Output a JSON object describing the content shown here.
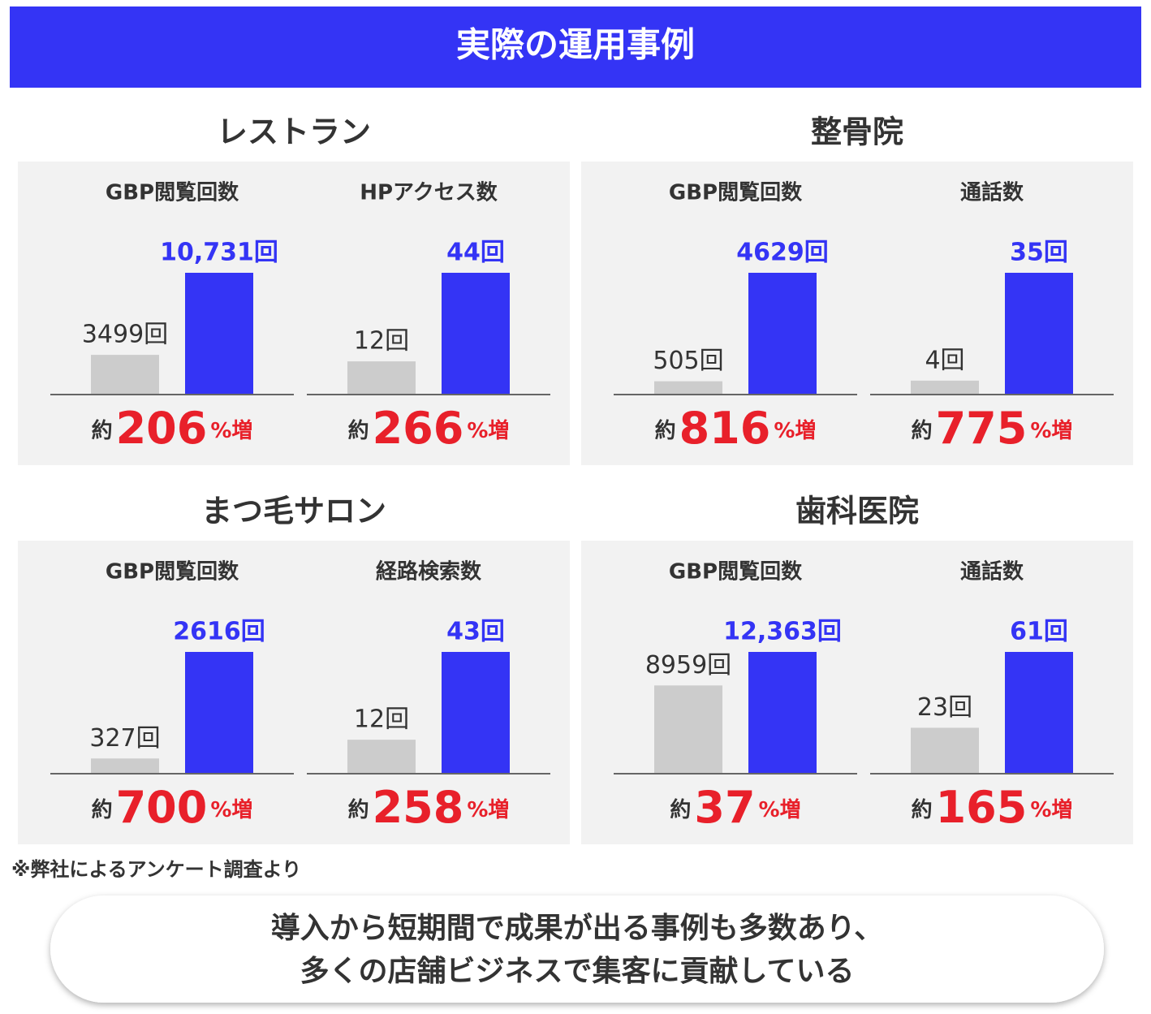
{
  "title": "実際の運用事例",
  "sections": [
    {
      "name": "レストラン"
    },
    {
      "name": "整骨院"
    },
    {
      "name": "まつ毛サロン"
    },
    {
      "name": "歯科医院"
    }
  ],
  "chart_data": [
    {
      "type": "bar",
      "title": "GBP閲覧回数",
      "values": [
        3499,
        10731
      ],
      "value_labels": [
        "3499回",
        "10,731回"
      ],
      "colors": [
        "#cccccc",
        "#3434f5"
      ],
      "prefix": "約",
      "change": 206,
      "suffix": "%増"
    },
    {
      "type": "bar",
      "title": "HPアクセス数",
      "values": [
        12,
        44
      ],
      "value_labels": [
        "12回",
        "44回"
      ],
      "colors": [
        "#cccccc",
        "#3434f5"
      ],
      "prefix": "約",
      "change": 266,
      "suffix": "%増"
    },
    {
      "type": "bar",
      "title": "GBP閲覧回数",
      "values": [
        505,
        4629
      ],
      "value_labels": [
        "505回",
        "4629回"
      ],
      "colors": [
        "#cccccc",
        "#3434f5"
      ],
      "prefix": "約",
      "change": 816,
      "suffix": "%増"
    },
    {
      "type": "bar",
      "title": "通話数",
      "values": [
        4,
        35
      ],
      "value_labels": [
        "4回",
        "35回"
      ],
      "colors": [
        "#cccccc",
        "#3434f5"
      ],
      "prefix": "約",
      "change": 775,
      "suffix": "%増"
    },
    {
      "type": "bar",
      "title": "GBP閲覧回数",
      "values": [
        327,
        2616
      ],
      "value_labels": [
        "327回",
        "2616回"
      ],
      "colors": [
        "#cccccc",
        "#3434f5"
      ],
      "prefix": "約",
      "change": 700,
      "suffix": "%増"
    },
    {
      "type": "bar",
      "title": "経路検索数",
      "values": [
        12,
        43
      ],
      "value_labels": [
        "12回",
        "43回"
      ],
      "colors": [
        "#cccccc",
        "#3434f5"
      ],
      "prefix": "約",
      "change": 258,
      "suffix": "%増"
    },
    {
      "type": "bar",
      "title": "GBP閲覧回数",
      "values": [
        8959,
        12363
      ],
      "value_labels": [
        "8959回",
        "12,363回"
      ],
      "colors": [
        "#cccccc",
        "#3434f5"
      ],
      "prefix": "約",
      "change": 37,
      "suffix": "%増"
    },
    {
      "type": "bar",
      "title": "通話数",
      "values": [
        23,
        61
      ],
      "value_labels": [
        "23回",
        "61回"
      ],
      "colors": [
        "#cccccc",
        "#3434f5"
      ],
      "prefix": "約",
      "change": 165,
      "suffix": "%増"
    }
  ],
  "note": "※弊社によるアンケート調査より",
  "message": [
    "導入から短期間で成果が出る事例も多数あり、",
    "多くの店舗ビジネスで集客に貢献している"
  ]
}
